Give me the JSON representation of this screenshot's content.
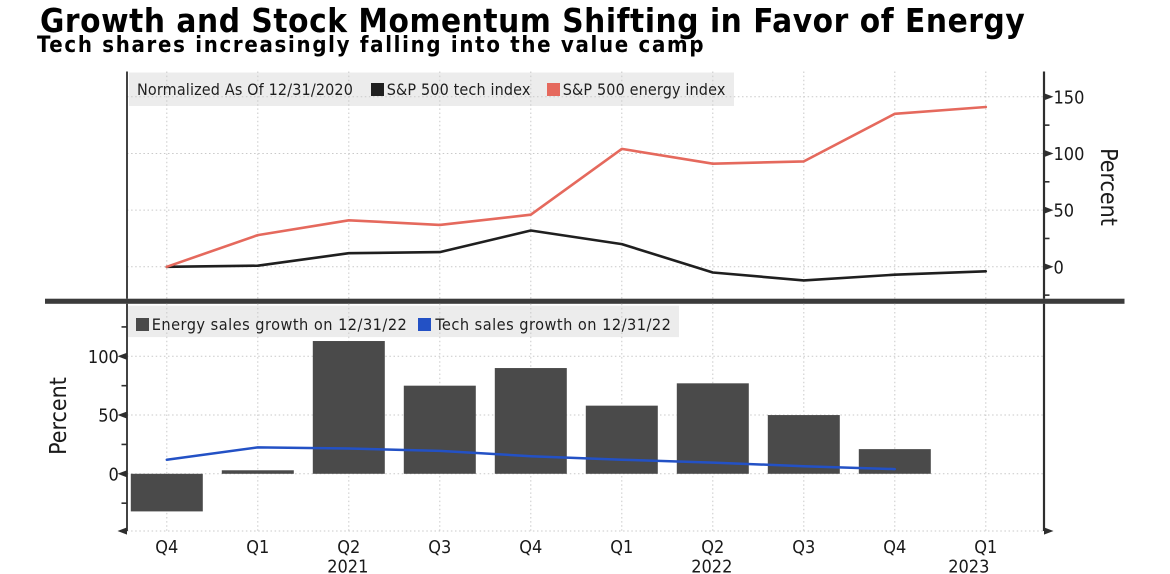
{
  "header": {
    "title": "Growth and Stock Momentum Shifting in Favor of Energy",
    "subtitle": "Tech shares increasingly falling into the value camp"
  },
  "colors": {
    "tech_index_line": "#1f1f1f",
    "energy_index_line": "#e5695d",
    "energy_bar": "#4a4a4a",
    "tech_sales_line": "#2351c5",
    "legend_background": "#ececec",
    "grid": "#c9c9c9",
    "axis": "#2e2e2e",
    "divider": "#3b3b3b",
    "text": "#1a1a1a"
  },
  "chart_data": [
    {
      "type": "line",
      "panel": "top",
      "legend_note": "Normalized As Of 12/31/2020",
      "categories": [
        "Q4 2020",
        "Q1 2021",
        "Q2 2021",
        "Q3 2021",
        "Q4 2021",
        "Q1 2022",
        "Q2 2022",
        "Q3 2022",
        "Q4 2022",
        "Q1 2023"
      ],
      "series": [
        {
          "name": "S&P 500 tech index",
          "color_key": "tech_index_line",
          "values": [
            0,
            1,
            12,
            13,
            32,
            20,
            -5,
            -12,
            -7,
            -4
          ]
        },
        {
          "name": "S&P 500 energy index",
          "color_key": "energy_index_line",
          "values": [
            0,
            28,
            41,
            37,
            46,
            104,
            91,
            93,
            135,
            141
          ]
        }
      ],
      "ylabel": "Percent",
      "yaxis_side": "right",
      "yticks": [
        0,
        50,
        100,
        150
      ],
      "yticks_minor": [
        -25,
        25,
        75,
        125
      ],
      "ylim": [
        -28,
        172
      ],
      "grid": true,
      "legend_position": "top-left"
    },
    {
      "type": "bar+line",
      "panel": "bottom",
      "categories": [
        "Q4 2020",
        "Q1 2021",
        "Q2 2021",
        "Q3 2021",
        "Q4 2021",
        "Q1 2022",
        "Q2 2022",
        "Q3 2022",
        "Q4 2022",
        "Q1 2023"
      ],
      "series": [
        {
          "name": "Energy sales growth on 12/31/22",
          "type": "bar",
          "color_key": "energy_bar",
          "values": [
            -32,
            3,
            113,
            75,
            90,
            58,
            77,
            50,
            21,
            null
          ]
        },
        {
          "name": "Tech sales growth on 12/31/22",
          "type": "line",
          "color_key": "tech_sales_line",
          "values": [
            12,
            22.5,
            21.5,
            19.5,
            15,
            12,
            9.5,
            6.5,
            4,
            null
          ]
        }
      ],
      "ylabel": "Percent",
      "yaxis_side": "left",
      "yticks": [
        0,
        50,
        100
      ],
      "yticks_minor": [
        -25,
        25,
        75,
        125
      ],
      "ylim": [
        -49,
        145
      ],
      "grid": true,
      "legend_position": "top-left",
      "xtick_labels": [
        "Q4",
        "Q1",
        "Q2",
        "Q3",
        "Q4",
        "Q1",
        "Q2",
        "Q3",
        "Q4",
        "Q1"
      ],
      "year_labels": [
        {
          "text": "2021",
          "x_index": 2
        },
        {
          "text": "2022",
          "x_index": 6
        },
        {
          "text": "2023",
          "x_index": 9
        }
      ]
    }
  ]
}
